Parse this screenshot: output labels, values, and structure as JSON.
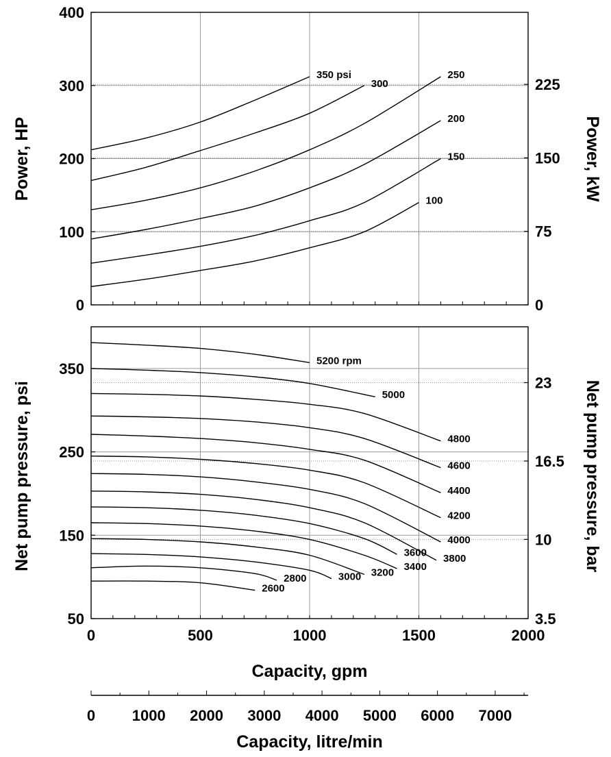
{
  "chart_data": [
    {
      "type": "line",
      "panel": "power",
      "ylabel": "Power, HP",
      "ylabel_right": "Power, kW",
      "xlim": [
        0,
        2000
      ],
      "ylim": [
        0,
        400
      ],
      "y_ticks": [
        0,
        100,
        200,
        300,
        400
      ],
      "y_tick_labels": [
        "0",
        "100",
        "200",
        "300",
        "400"
      ],
      "y_right_ticks": [
        {
          "value": 0,
          "label": "0"
        },
        {
          "value": 100.5,
          "label": "75"
        },
        {
          "value": 201,
          "label": "150"
        },
        {
          "value": 301.5,
          "label": "225"
        }
      ],
      "grid": true,
      "series": [
        {
          "name": "350 psi",
          "x": [
            0,
            250,
            500,
            750,
            1000
          ],
          "y": [
            212,
            228,
            250,
            280,
            312
          ]
        },
        {
          "name": "300",
          "x": [
            0,
            250,
            500,
            750,
            1000,
            1250
          ],
          "y": [
            170,
            188,
            211,
            235,
            262,
            300
          ]
        },
        {
          "name": "250",
          "x": [
            0,
            250,
            500,
            750,
            1000,
            1250,
            1600
          ],
          "y": [
            130,
            143,
            160,
            183,
            212,
            248,
            312
          ]
        },
        {
          "name": "200",
          "x": [
            0,
            250,
            500,
            750,
            1000,
            1250,
            1600
          ],
          "y": [
            90,
            103,
            118,
            135,
            160,
            192,
            252
          ]
        },
        {
          "name": "150",
          "x": [
            0,
            250,
            500,
            750,
            1000,
            1250,
            1600
          ],
          "y": [
            57,
            68,
            80,
            95,
            115,
            140,
            200
          ]
        },
        {
          "name": "100",
          "x": [
            0,
            250,
            500,
            750,
            1000,
            1250,
            1500
          ],
          "y": [
            25,
            35,
            47,
            60,
            78,
            100,
            140
          ]
        }
      ]
    },
    {
      "type": "line",
      "panel": "pressure",
      "xlabel": "Capacity, gpm",
      "ylabel": "Net pump pressure, psi",
      "ylabel_right": "Net pump pressure, bar",
      "xlim": [
        0,
        2000
      ],
      "ylim": [
        50,
        400
      ],
      "x_ticks": [
        0,
        500,
        1000,
        1500,
        2000
      ],
      "x_tick_labels": [
        "0",
        "500",
        "1000",
        "1500",
        "2000"
      ],
      "y_ticks": [
        50,
        150,
        250,
        350
      ],
      "y_tick_labels": [
        "50",
        "150",
        "250",
        "350"
      ],
      "y_right_ticks": [
        {
          "value": 50,
          "label": "3.5"
        },
        {
          "value": 145,
          "label": "10"
        },
        {
          "value": 239,
          "label": "16.5"
        },
        {
          "value": 333,
          "label": "23"
        }
      ],
      "grid": true,
      "series": [
        {
          "name": "5200 rpm",
          "x": [
            0,
            250,
            500,
            750,
            1000
          ],
          "y": [
            381,
            378,
            374,
            367,
            357
          ]
        },
        {
          "name": "5000",
          "x": [
            0,
            250,
            500,
            750,
            1000,
            1300
          ],
          "y": [
            350,
            348,
            345,
            340,
            332,
            316
          ]
        },
        {
          "name": "4800",
          "x": [
            0,
            250,
            500,
            750,
            1000,
            1250,
            1600
          ],
          "y": [
            320,
            319,
            317,
            313,
            307,
            296,
            263
          ]
        },
        {
          "name": "4600",
          "x": [
            0,
            250,
            500,
            750,
            1000,
            1250,
            1600
          ],
          "y": [
            293,
            292,
            290,
            286,
            279,
            266,
            231
          ]
        },
        {
          "name": "4400",
          "x": [
            0,
            250,
            500,
            750,
            1000,
            1250,
            1600
          ],
          "y": [
            271,
            269,
            266,
            261,
            253,
            240,
            201
          ]
        },
        {
          "name": "4200",
          "x": [
            0,
            250,
            500,
            750,
            1000,
            1250,
            1600
          ],
          "y": [
            245,
            244,
            241,
            236,
            228,
            213,
            171
          ]
        },
        {
          "name": "4000",
          "x": [
            0,
            250,
            500,
            750,
            1000,
            1250,
            1600
          ],
          "y": [
            224,
            223,
            220,
            214,
            205,
            188,
            142
          ]
        },
        {
          "name": "3800",
          "x": [
            0,
            250,
            500,
            750,
            1000,
            1250,
            1580
          ],
          "y": [
            203,
            202,
            199,
            193,
            183,
            165,
            120
          ]
        },
        {
          "name": "3600",
          "x": [
            0,
            250,
            500,
            750,
            1000,
            1250,
            1400
          ],
          "y": [
            184,
            183,
            180,
            174,
            164,
            146,
            127
          ]
        },
        {
          "name": "3400",
          "x": [
            0,
            250,
            500,
            750,
            1000,
            1250,
            1400
          ],
          "y": [
            165,
            164,
            161,
            155,
            145,
            126,
            110
          ]
        },
        {
          "name": "3200",
          "x": [
            0,
            250,
            500,
            750,
            1000,
            1250
          ],
          "y": [
            146,
            145,
            142,
            136,
            126,
            103
          ]
        },
        {
          "name": "3000",
          "x": [
            0,
            250,
            500,
            750,
            1000,
            1100
          ],
          "y": [
            128,
            127,
            124,
            118,
            108,
            98
          ]
        },
        {
          "name": "2800",
          "x": [
            0,
            250,
            500,
            750,
            850
          ],
          "y": [
            111,
            113,
            111,
            104,
            96
          ]
        },
        {
          "name": "2600",
          "x": [
            0,
            250,
            500,
            750
          ],
          "y": [
            95,
            95,
            93,
            84
          ]
        }
      ]
    }
  ],
  "litre_scale": {
    "xlabel": "Capacity, litre/min",
    "max_lpm": 7570,
    "ticks": [
      {
        "value": 0,
        "label": "0"
      },
      {
        "value": 1000,
        "label": "1000"
      },
      {
        "value": 2000,
        "label": "2000"
      },
      {
        "value": 3000,
        "label": "3000"
      },
      {
        "value": 4000,
        "label": "4000"
      },
      {
        "value": 5000,
        "label": "5000"
      },
      {
        "value": 6000,
        "label": "6000"
      },
      {
        "value": 7000,
        "label": "7000"
      }
    ]
  }
}
